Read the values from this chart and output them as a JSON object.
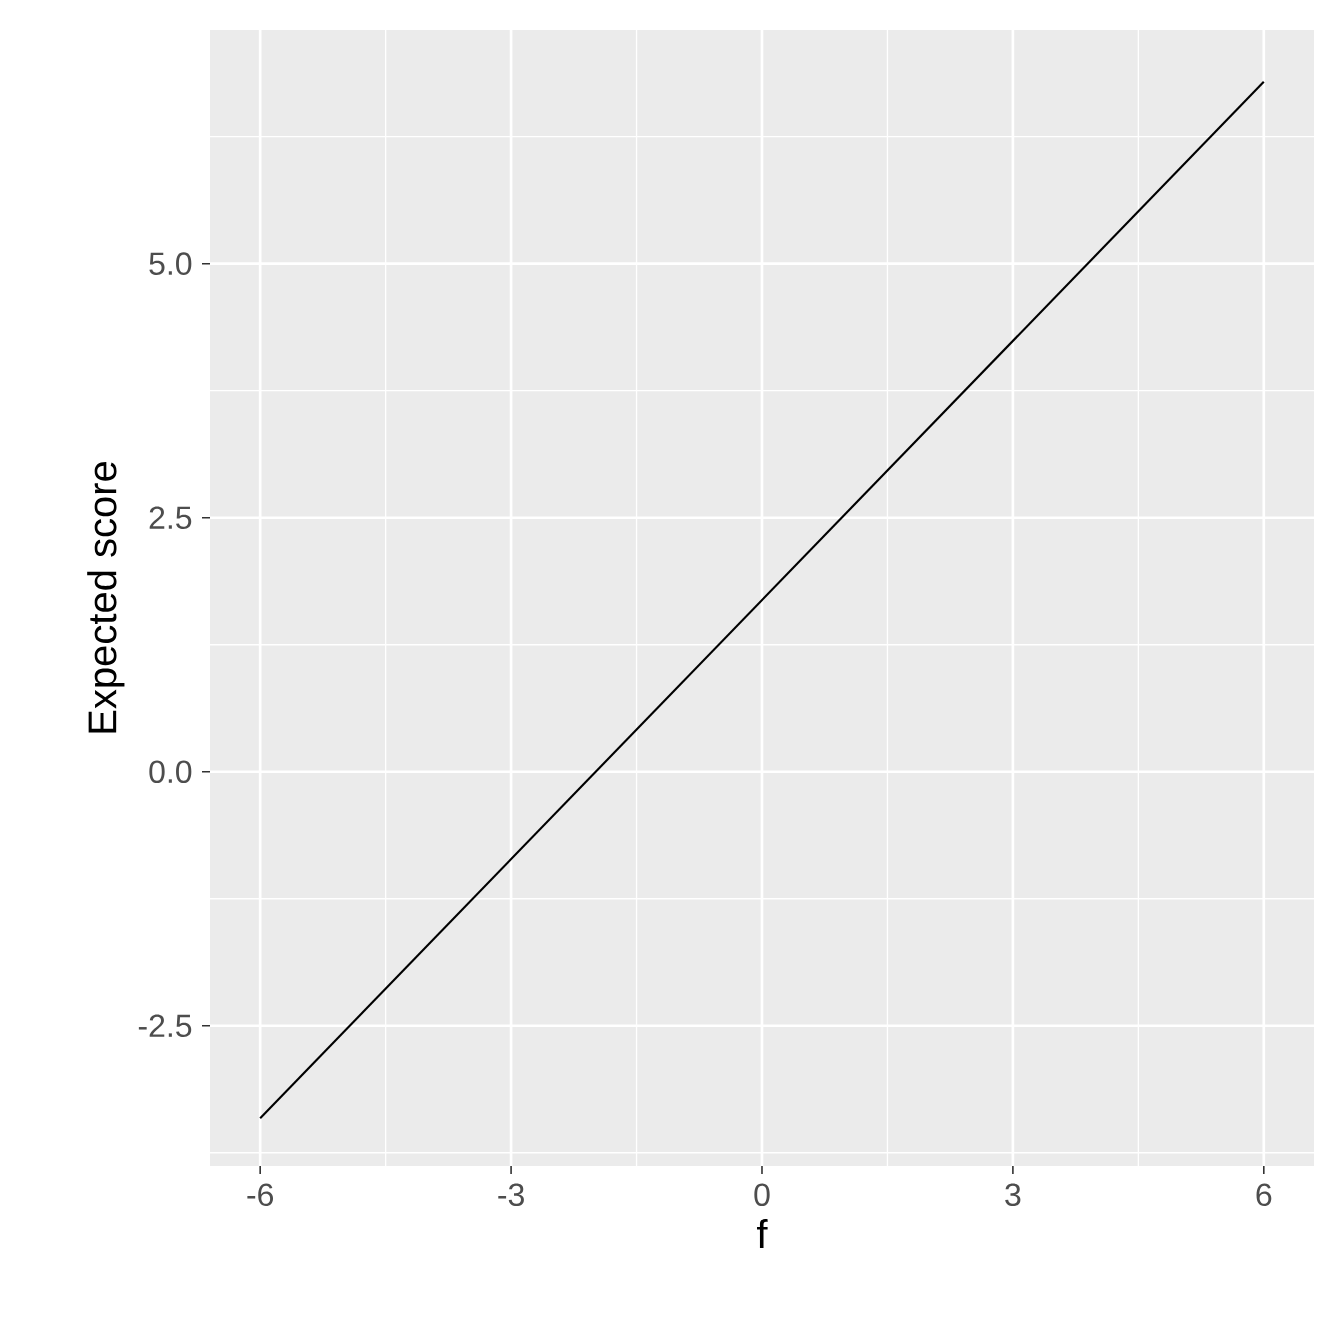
{
  "chart_data": {
    "type": "line",
    "xlabel": "f",
    "ylabel": "Expected score",
    "x": [
      -6,
      6
    ],
    "series": [
      {
        "color": "#000000",
        "values": [
          -3.41,
          6.79
        ]
      }
    ],
    "xlim": [
      -6.6,
      6.6
    ],
    "ylim": [
      -3.88,
      7.3
    ],
    "xticks": [
      -6,
      -3,
      0,
      3,
      6
    ],
    "yticks": [
      {
        "value": -2.5,
        "label": "-2.5"
      },
      {
        "value": 0,
        "label": "0.0"
      },
      {
        "value": 2.5,
        "label": "2.5"
      },
      {
        "value": 5,
        "label": "5.0"
      }
    ],
    "grid": true
  }
}
